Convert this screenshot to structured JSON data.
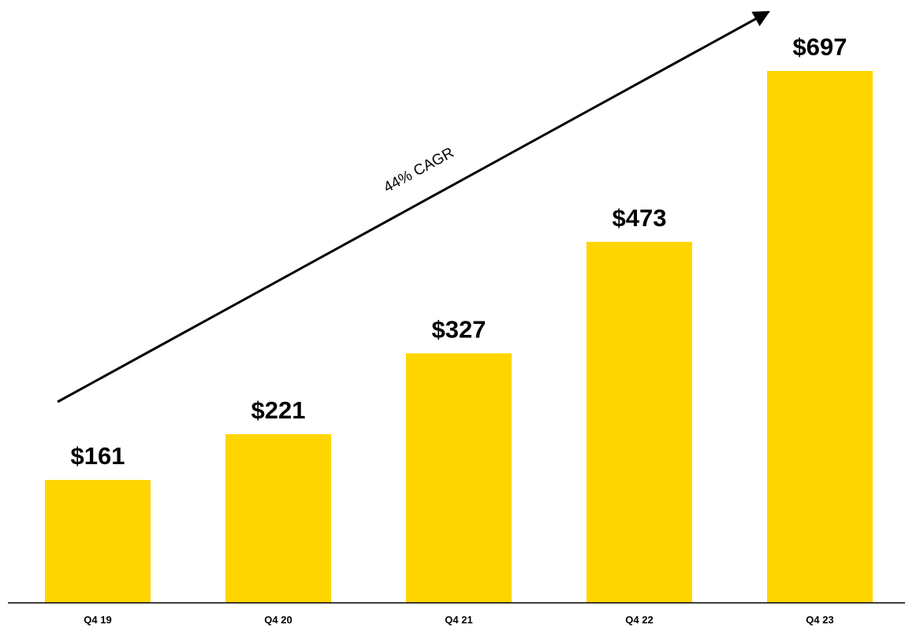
{
  "chart_data": {
    "type": "bar",
    "categories": [
      "Q4 19",
      "Q4 20",
      "Q4 21",
      "Q4 22",
      "Q4 23"
    ],
    "values": [
      161,
      221,
      327,
      473,
      697
    ],
    "data_labels": [
      "$161",
      "$221",
      "$327",
      "$473",
      "$697"
    ],
    "title": "",
    "xlabel": "",
    "ylabel": "",
    "ylim": [
      0,
      697
    ],
    "grid": false,
    "annotations": [
      {
        "text": "44% CAGR",
        "type": "arrow",
        "direction": "up-right"
      }
    ],
    "bar_color": "#FFD500",
    "axis_color": "#000000"
  }
}
